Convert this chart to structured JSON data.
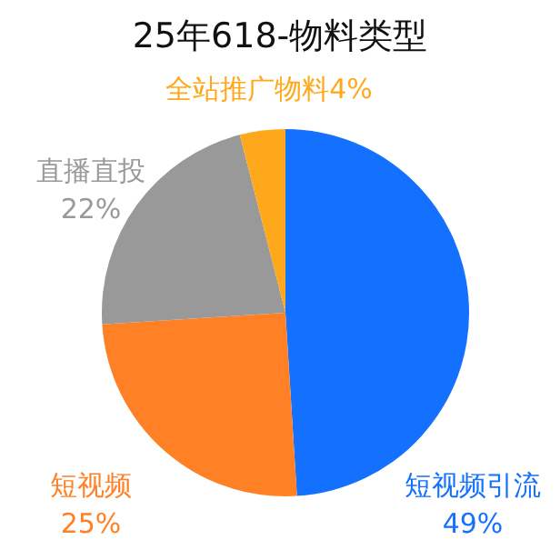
{
  "chart_data": {
    "type": "pie",
    "title": "25年618-物料类型",
    "categories": [
      "短视频引流",
      "短视频",
      "直播直投",
      "全站推广物料"
    ],
    "values": [
      49,
      25,
      22,
      4
    ],
    "value_labels": [
      "49%",
      "25%",
      "22%",
      "4%"
    ],
    "colors": [
      "#1470ff",
      "#ff8025",
      "#999999",
      "#ffa81c"
    ],
    "legend": false
  }
}
